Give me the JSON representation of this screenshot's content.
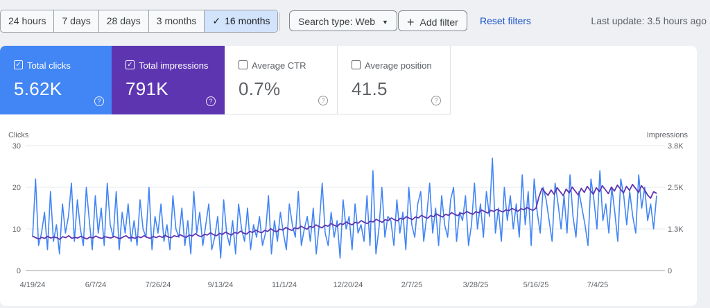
{
  "toolbar": {
    "ranges": [
      "24 hours",
      "7 days",
      "28 days",
      "3 months",
      "16 months"
    ],
    "active_range": "16 months",
    "search_type": "Search type: Web",
    "add_filter": "Add filter",
    "reset": "Reset filters",
    "last_update": "Last update: 3.5 hours ago"
  },
  "metrics": [
    {
      "label": "Total clicks",
      "value": "5.62K",
      "checked": true,
      "color": "#4285f4"
    },
    {
      "label": "Total impressions",
      "value": "791K",
      "checked": true,
      "color": "#5e35b1"
    },
    {
      "label": "Average CTR",
      "value": "0.7%",
      "checked": false
    },
    {
      "label": "Average position",
      "value": "41.5",
      "checked": false
    }
  ],
  "chart_data": {
    "type": "line",
    "left_axis_title": "Clicks",
    "right_axis_title": "Impressions",
    "left_ticks": [
      "30",
      "20",
      "10",
      "0"
    ],
    "right_ticks": [
      "3.8K",
      "2.5K",
      "1.3K",
      "0"
    ],
    "ylim_left": [
      0,
      30
    ],
    "ylim_right": [
      0,
      3800
    ],
    "x_ticks": [
      "4/19/24",
      "6/7/24",
      "7/26/24",
      "9/13/24",
      "11/1/24",
      "12/20/24",
      "2/7/25",
      "3/28/25",
      "5/16/25",
      "7/4/25"
    ],
    "series": [
      {
        "name": "Total clicks",
        "axis": "left",
        "color": "#4285f4",
        "values": [
          8,
          22,
          6,
          9,
          14,
          5,
          19,
          7,
          11,
          4,
          16,
          9,
          13,
          21,
          7,
          17,
          10,
          6,
          20,
          12,
          5,
          18,
          9,
          15,
          6,
          21,
          11,
          8,
          19,
          5,
          14,
          9,
          16,
          7,
          12,
          6,
          17,
          10,
          8,
          20,
          5,
          13,
          9,
          16,
          7,
          11,
          5,
          18,
          10,
          8,
          15,
          6,
          12,
          4,
          19,
          9,
          14,
          6,
          11,
          16,
          5,
          8,
          13,
          3,
          17,
          9,
          6,
          12,
          4,
          16,
          10,
          7,
          15,
          5,
          11,
          8,
          13,
          6,
          9,
          18,
          4,
          12,
          7,
          14,
          9,
          5,
          16,
          11,
          8,
          19,
          6,
          10,
          13,
          7,
          15,
          4,
          11,
          21,
          9,
          6,
          14,
          8,
          12,
          3,
          17,
          10,
          13,
          5,
          16,
          9,
          11,
          7,
          18,
          6,
          24,
          4,
          10,
          20,
          8,
          13,
          12,
          6,
          17,
          9,
          14,
          5,
          20,
          11,
          8,
          16,
          19,
          7,
          13,
          21,
          9,
          15,
          6,
          18,
          11,
          8,
          17,
          20,
          7,
          14,
          12,
          18,
          6,
          11,
          21,
          10,
          16,
          8,
          19,
          13,
          27,
          9,
          15,
          7,
          20,
          12,
          18,
          10,
          16,
          8,
          23,
          11,
          19,
          6,
          22,
          14,
          9,
          20,
          17,
          12,
          7,
          21,
          16,
          10,
          18,
          9,
          23,
          13,
          8,
          19,
          15,
          11,
          6,
          22,
          17,
          10,
          24,
          12,
          16,
          9,
          20,
          14,
          7,
          22,
          18,
          11,
          19,
          13,
          9,
          23,
          15,
          20,
          12,
          16,
          10,
          18
        ]
      },
      {
        "name": "Total impressions",
        "axis": "right",
        "color": "#5e35b1",
        "values": [
          1050,
          1000,
          960,
          1010,
          980,
          1040,
          990,
          1020,
          1000,
          950,
          1030,
          1000,
          1060,
          980,
          1010,
          990,
          1040,
          1000,
          960,
          1020,
          990,
          1050,
          1000,
          980,
          1030,
          1010,
          990,
          1040,
          1000,
          970,
          1020,
          1060,
          990,
          1010,
          980,
          1030,
          1000,
          1060,
          1010,
          980,
          1040,
          1000,
          1050,
          1010,
          1070,
          1020,
          1000,
          1060,
          1030,
          1090,
          1040,
          1010,
          1080,
          1050,
          1120,
          1060,
          1030,
          1100,
          1080,
          1150,
          1090,
          1060,
          1130,
          1100,
          1170,
          1120,
          1080,
          1160,
          1130,
          1200,
          1140,
          1110,
          1190,
          1160,
          1230,
          1180,
          1150,
          1220,
          1190,
          1270,
          1210,
          1180,
          1260,
          1230,
          1310,
          1260,
          1220,
          1300,
          1270,
          1350,
          1300,
          1260,
          1340,
          1310,
          1390,
          1340,
          1300,
          1380,
          1350,
          1430,
          1380,
          1340,
          1430,
          1400,
          1480,
          1430,
          1390,
          1470,
          1440,
          1520,
          1470,
          1430,
          1500,
          1480,
          1560,
          1510,
          1470,
          1550,
          1520,
          1600,
          1550,
          1510,
          1590,
          1560,
          1640,
          1590,
          1550,
          1630,
          1600,
          1680,
          1630,
          1590,
          1670,
          1640,
          1720,
          1670,
          1630,
          1710,
          1680,
          1760,
          1710,
          1670,
          1750,
          1720,
          1800,
          1750,
          1710,
          1790,
          1760,
          1840,
          1790,
          1750,
          1830,
          1800,
          1860,
          1820,
          1780,
          1850,
          1820,
          1890,
          1850,
          1800,
          1880,
          1850,
          1920,
          1870,
          1830,
          1900,
          2250,
          2500,
          2380,
          2290,
          2450,
          2320,
          2520,
          2400,
          2280,
          2480,
          2360,
          2540,
          2420,
          2300,
          2500,
          2380,
          2560,
          2440,
          2320,
          2520,
          2400,
          2580,
          2460,
          2340,
          2540,
          2420,
          2600,
          2480,
          2360,
          2560,
          2440,
          2620,
          2500,
          2380,
          2580,
          2460,
          2300,
          2200,
          2400,
          2350
        ]
      }
    ]
  }
}
